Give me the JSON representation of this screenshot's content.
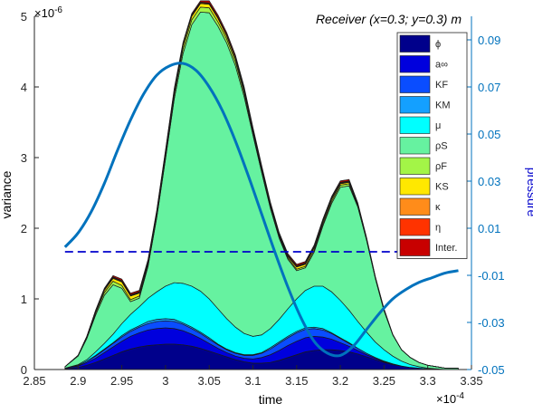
{
  "chart_data": {
    "type": "area",
    "title": "Receiver (x=0.3; y=0.3) m",
    "xlabel": "time",
    "ylabel": "variance",
    "y2label": "pressure",
    "x_exponent": "×10",
    "x_exponent_power": "-4",
    "y_exponent": "×10",
    "y_exponent_power": "-6",
    "xlim": [
      2.85,
      3.35
    ],
    "ylim": [
      0,
      5
    ],
    "y2lim": [
      -0.05,
      0.1
    ],
    "xticks": [
      "2.85",
      "2.9",
      "2.95",
      "3",
      "3.05",
      "3.1",
      "3.15",
      "3.2",
      "3.25",
      "3.3",
      "3.35"
    ],
    "yticks": [
      "0",
      "1",
      "2",
      "3",
      "4",
      "5"
    ],
    "y2ticks": [
      "-0.05",
      "-0.03",
      "-0.01",
      "0.01",
      "0.03",
      "0.05",
      "0.07",
      "0.09"
    ],
    "legend_position": "top-right",
    "x": [
      2.885,
      2.9,
      2.91,
      2.92,
      2.93,
      2.94,
      2.95,
      2.96,
      2.97,
      2.98,
      2.99,
      3.0,
      3.01,
      3.02,
      3.03,
      3.04,
      3.05,
      3.06,
      3.07,
      3.08,
      3.09,
      3.1,
      3.11,
      3.12,
      3.13,
      3.14,
      3.15,
      3.16,
      3.17,
      3.18,
      3.19,
      3.2,
      3.21,
      3.22,
      3.23,
      3.24,
      3.25,
      3.26,
      3.27,
      3.28,
      3.29,
      3.3,
      3.31,
      3.32,
      3.335
    ],
    "series": [
      {
        "name": "ϕ",
        "color": "#00008b",
        "values": [
          0.01,
          0.03,
          0.06,
          0.1,
          0.15,
          0.2,
          0.25,
          0.29,
          0.32,
          0.34,
          0.35,
          0.36,
          0.36,
          0.35,
          0.33,
          0.3,
          0.26,
          0.22,
          0.18,
          0.14,
          0.11,
          0.09,
          0.09,
          0.1,
          0.13,
          0.17,
          0.21,
          0.25,
          0.27,
          0.28,
          0.28,
          0.27,
          0.25,
          0.22,
          0.18,
          0.14,
          0.1,
          0.07,
          0.05,
          0.03,
          0.02,
          0.01,
          0.01,
          0.0,
          0.0
        ]
      },
      {
        "name": "a∞",
        "color": "#0000dd",
        "values": [
          0.01,
          0.02,
          0.04,
          0.06,
          0.09,
          0.12,
          0.15,
          0.18,
          0.2,
          0.22,
          0.23,
          0.23,
          0.22,
          0.2,
          0.17,
          0.14,
          0.11,
          0.08,
          0.06,
          0.05,
          0.05,
          0.06,
          0.08,
          0.11,
          0.14,
          0.17,
          0.19,
          0.2,
          0.2,
          0.18,
          0.15,
          0.11,
          0.08,
          0.05,
          0.03,
          0.02,
          0.01,
          0.01,
          0.0,
          0.0,
          0.0,
          0.0,
          0.0,
          0.0,
          0.0
        ]
      },
      {
        "name": "KF",
        "color": "#0a4dff",
        "values": [
          0.0,
          0.01,
          0.02,
          0.03,
          0.04,
          0.05,
          0.06,
          0.07,
          0.08,
          0.09,
          0.1,
          0.1,
          0.1,
          0.09,
          0.08,
          0.07,
          0.06,
          0.05,
          0.04,
          0.04,
          0.04,
          0.05,
          0.06,
          0.08,
          0.1,
          0.11,
          0.12,
          0.12,
          0.11,
          0.1,
          0.08,
          0.06,
          0.04,
          0.03,
          0.02,
          0.01,
          0.01,
          0.0,
          0.0,
          0.0,
          0.0,
          0.0,
          0.0,
          0.0,
          0.0
        ]
      },
      {
        "name": "KM",
        "color": "#14a0ff",
        "values": [
          0.0,
          0.0,
          0.0,
          0.01,
          0.01,
          0.01,
          0.02,
          0.02,
          0.02,
          0.03,
          0.03,
          0.03,
          0.03,
          0.02,
          0.02,
          0.02,
          0.02,
          0.01,
          0.01,
          0.01,
          0.01,
          0.01,
          0.01,
          0.02,
          0.02,
          0.02,
          0.02,
          0.02,
          0.02,
          0.02,
          0.01,
          0.01,
          0.01,
          0.0,
          0.0,
          0.0,
          0.0,
          0.0,
          0.0,
          0.0,
          0.0,
          0.0,
          0.0,
          0.0,
          0.0
        ]
      },
      {
        "name": "μ",
        "color": "#00ffff",
        "values": [
          0.0,
          0.01,
          0.02,
          0.05,
          0.08,
          0.12,
          0.17,
          0.22,
          0.27,
          0.33,
          0.39,
          0.46,
          0.52,
          0.56,
          0.58,
          0.58,
          0.55,
          0.5,
          0.43,
          0.36,
          0.3,
          0.26,
          0.25,
          0.27,
          0.32,
          0.39,
          0.46,
          0.53,
          0.58,
          0.6,
          0.58,
          0.53,
          0.46,
          0.38,
          0.3,
          0.22,
          0.16,
          0.11,
          0.07,
          0.04,
          0.02,
          0.01,
          0.0,
          0.0,
          0.0
        ]
      },
      {
        "name": "ρS",
        "color": "#66f2a0",
        "values": [
          0.02,
          0.12,
          0.3,
          0.52,
          0.68,
          0.7,
          0.5,
          0.18,
          0.12,
          0.45,
          1.05,
          1.8,
          2.6,
          3.25,
          3.7,
          3.95,
          4.05,
          4.0,
          3.9,
          3.7,
          3.35,
          2.85,
          2.3,
          1.7,
          1.15,
          0.7,
          0.4,
          0.32,
          0.48,
          0.85,
          1.25,
          1.6,
          1.76,
          1.62,
          1.3,
          0.9,
          0.55,
          0.3,
          0.16,
          0.1,
          0.06,
          0.04,
          0.03,
          0.02,
          0.02
        ]
      },
      {
        "name": "ρF",
        "color": "#a3f547",
        "values": [
          0.0,
          0.01,
          0.02,
          0.03,
          0.04,
          0.05,
          0.04,
          0.03,
          0.03,
          0.03,
          0.04,
          0.05,
          0.06,
          0.07,
          0.07,
          0.07,
          0.07,
          0.06,
          0.06,
          0.06,
          0.05,
          0.04,
          0.03,
          0.03,
          0.02,
          0.02,
          0.02,
          0.02,
          0.03,
          0.03,
          0.03,
          0.03,
          0.03,
          0.02,
          0.02,
          0.01,
          0.01,
          0.0,
          0.0,
          0.0,
          0.0,
          0.0,
          0.0,
          0.0,
          0.0
        ]
      },
      {
        "name": "KS",
        "color": "#ffe800",
        "values": [
          0.0,
          0.0,
          0.01,
          0.02,
          0.03,
          0.04,
          0.05,
          0.05,
          0.04,
          0.03,
          0.03,
          0.04,
          0.05,
          0.05,
          0.05,
          0.05,
          0.05,
          0.05,
          0.04,
          0.04,
          0.04,
          0.03,
          0.03,
          0.02,
          0.02,
          0.02,
          0.03,
          0.03,
          0.03,
          0.03,
          0.03,
          0.02,
          0.02,
          0.02,
          0.01,
          0.01,
          0.01,
          0.0,
          0.0,
          0.0,
          0.0,
          0.0,
          0.0,
          0.0,
          0.0
        ]
      },
      {
        "name": "κ",
        "color": "#ff8c1a",
        "values": [
          0.0,
          0.0,
          0.0,
          0.01,
          0.01,
          0.01,
          0.01,
          0.01,
          0.01,
          0.01,
          0.01,
          0.01,
          0.01,
          0.01,
          0.01,
          0.01,
          0.01,
          0.01,
          0.01,
          0.01,
          0.01,
          0.01,
          0.01,
          0.01,
          0.01,
          0.01,
          0.01,
          0.01,
          0.01,
          0.01,
          0.01,
          0.01,
          0.01,
          0.0,
          0.0,
          0.0,
          0.0,
          0.0,
          0.0,
          0.0,
          0.0,
          0.0,
          0.0,
          0.0,
          0.0
        ]
      },
      {
        "name": "η",
        "color": "#ff3300",
        "values": [
          0.0,
          0.0,
          0.0,
          0.0,
          0.01,
          0.01,
          0.01,
          0.01,
          0.01,
          0.01,
          0.01,
          0.01,
          0.01,
          0.01,
          0.01,
          0.01,
          0.01,
          0.01,
          0.01,
          0.01,
          0.01,
          0.01,
          0.01,
          0.01,
          0.01,
          0.01,
          0.01,
          0.01,
          0.01,
          0.01,
          0.01,
          0.01,
          0.01,
          0.0,
          0.0,
          0.0,
          0.0,
          0.0,
          0.0,
          0.0,
          0.0,
          0.0,
          0.0,
          0.0,
          0.0
        ]
      },
      {
        "name": "Inter.",
        "color": "#c80000",
        "values": [
          0.0,
          0.0,
          0.0,
          0.01,
          0.01,
          0.02,
          0.02,
          0.02,
          0.02,
          0.02,
          0.02,
          0.02,
          0.02,
          0.02,
          0.02,
          0.02,
          0.03,
          0.03,
          0.03,
          0.03,
          0.03,
          0.02,
          0.02,
          0.02,
          0.02,
          0.02,
          0.02,
          0.02,
          0.02,
          0.02,
          0.02,
          0.02,
          0.02,
          0.02,
          0.01,
          0.01,
          0.01,
          0.01,
          0.0,
          0.0,
          0.0,
          0.0,
          0.0,
          0.0,
          0.0
        ]
      }
    ],
    "pressure_series": {
      "color": "#0072bd",
      "axis": "right",
      "values": [
        0.002,
        0.008,
        0.017,
        0.029,
        0.043,
        0.056,
        0.067,
        0.075,
        0.079,
        0.08,
        0.077,
        0.07,
        0.06,
        0.047,
        0.032,
        0.016,
        0.0,
        -0.015,
        -0.028,
        -0.038,
        -0.043,
        -0.044,
        -0.04,
        -0.033,
        -0.026,
        -0.02,
        -0.016,
        -0.013,
        -0.011,
        -0.009,
        -0.008
      ]
    },
    "pressure_x": [
      2.885,
      2.9,
      2.915,
      2.93,
      2.945,
      2.96,
      2.975,
      2.99,
      3.005,
      3.02,
      3.035,
      3.05,
      3.065,
      3.08,
      3.095,
      3.11,
      3.125,
      3.14,
      3.155,
      3.17,
      3.185,
      3.2,
      3.215,
      3.23,
      3.245,
      3.26,
      3.275,
      3.29,
      3.305,
      3.32,
      3.335
    ],
    "reference_line": {
      "axis": "right",
      "value": 0.0,
      "style": "dashed",
      "color": "#0000cc"
    }
  }
}
